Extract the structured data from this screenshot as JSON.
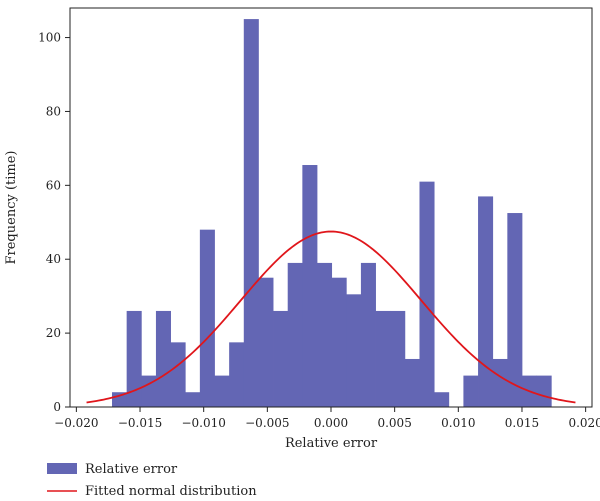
{
  "chart_data": {
    "type": "bar",
    "title": "",
    "xlabel": "Relative error",
    "ylabel": "Frequency (time)",
    "xlim": [
      -0.0205,
      0.0205
    ],
    "ylim": [
      0,
      108
    ],
    "xticks": [
      -0.02,
      -0.015,
      -0.01,
      -0.005,
      0.0,
      0.005,
      0.01,
      0.015,
      0.02
    ],
    "xtick_labels": [
      "−0.020",
      "−0.015",
      "−0.010",
      "−0.005",
      "0.000",
      "0.005",
      "0.010",
      "0.015",
      "0.020"
    ],
    "yticks": [
      0,
      20,
      40,
      60,
      80,
      100
    ],
    "ytick_labels": [
      "0",
      "20",
      "40",
      "60",
      "80",
      "100"
    ],
    "grid": false,
    "legend_position": "bottom-left",
    "bin_edges": [
      -0.0172,
      -0.01605,
      -0.0149,
      -0.01375,
      -0.0126,
      -0.01145,
      -0.0103,
      -0.00915,
      -0.008,
      -0.00685,
      -0.0057,
      -0.00455,
      -0.0034,
      -0.00225,
      -0.0011,
      5e-05,
      0.0012,
      0.00235,
      0.0035,
      0.00465,
      0.0058,
      0.00695,
      0.0081,
      0.00925,
      0.0104,
      0.01155,
      0.0127,
      0.01385,
      0.015,
      0.01615,
      0.0173
    ],
    "series": [
      {
        "name": "Relative error",
        "kind": "histogram",
        "color": "#6366b4",
        "values": [
          4,
          26,
          8.5,
          26,
          17.5,
          4,
          48,
          8.5,
          17.5,
          105,
          35,
          26,
          39,
          65.5,
          39,
          35,
          30.5,
          39,
          26,
          26,
          13,
          61,
          4,
          0,
          8.5,
          57,
          13,
          52.5,
          8.5,
          8.5
        ]
      },
      {
        "name": "Fitted normal distribution",
        "kind": "line",
        "color": "#e0161b",
        "mean": 0.0,
        "std": 0.0071,
        "peak": 47.5,
        "x_range": [
          -0.0192,
          0.0192
        ]
      }
    ]
  }
}
